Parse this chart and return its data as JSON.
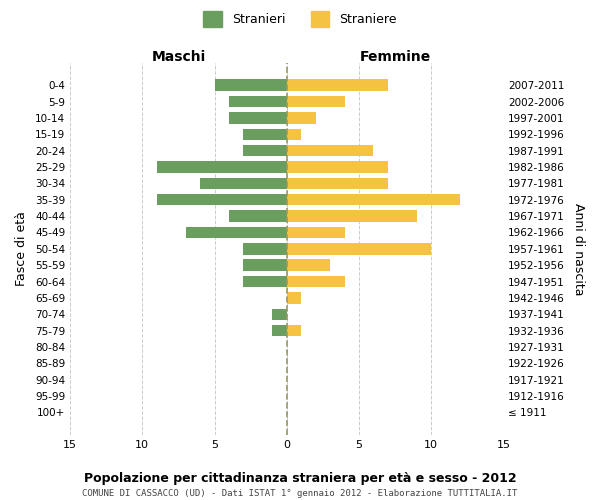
{
  "age_groups": [
    "100+",
    "95-99",
    "90-94",
    "85-89",
    "80-84",
    "75-79",
    "70-74",
    "65-69",
    "60-64",
    "55-59",
    "50-54",
    "45-49",
    "40-44",
    "35-39",
    "30-34",
    "25-29",
    "20-24",
    "15-19",
    "10-14",
    "5-9",
    "0-4"
  ],
  "birth_years": [
    "≤ 1911",
    "1912-1916",
    "1917-1921",
    "1922-1926",
    "1927-1931",
    "1932-1936",
    "1937-1941",
    "1942-1946",
    "1947-1951",
    "1952-1956",
    "1957-1961",
    "1962-1966",
    "1967-1971",
    "1972-1976",
    "1977-1981",
    "1982-1986",
    "1987-1991",
    "1992-1996",
    "1997-2001",
    "2002-2006",
    "2007-2011"
  ],
  "maschi": [
    0,
    0,
    0,
    0,
    0,
    1,
    1,
    0,
    3,
    3,
    3,
    7,
    4,
    9,
    6,
    9,
    3,
    3,
    4,
    4,
    5
  ],
  "femmine": [
    0,
    0,
    0,
    0,
    0,
    1,
    0,
    1,
    4,
    3,
    10,
    4,
    9,
    12,
    7,
    7,
    6,
    1,
    2,
    4,
    7
  ],
  "male_color": "#6a9e5e",
  "female_color": "#f5c242",
  "title": "Popolazione per cittadinanza straniera per età e sesso - 2012",
  "subtitle": "COMUNE DI CASSACCO (UD) - Dati ISTAT 1° gennaio 2012 - Elaborazione TUTTITALIA.IT",
  "xlabel_left": "Maschi",
  "xlabel_right": "Femmine",
  "ylabel_left": "Fasce di età",
  "ylabel_right": "Anni di nascita",
  "xlim": 15,
  "legend_stranieri": "Stranieri",
  "legend_straniere": "Straniere",
  "background_color": "#ffffff",
  "grid_color": "#cccccc"
}
